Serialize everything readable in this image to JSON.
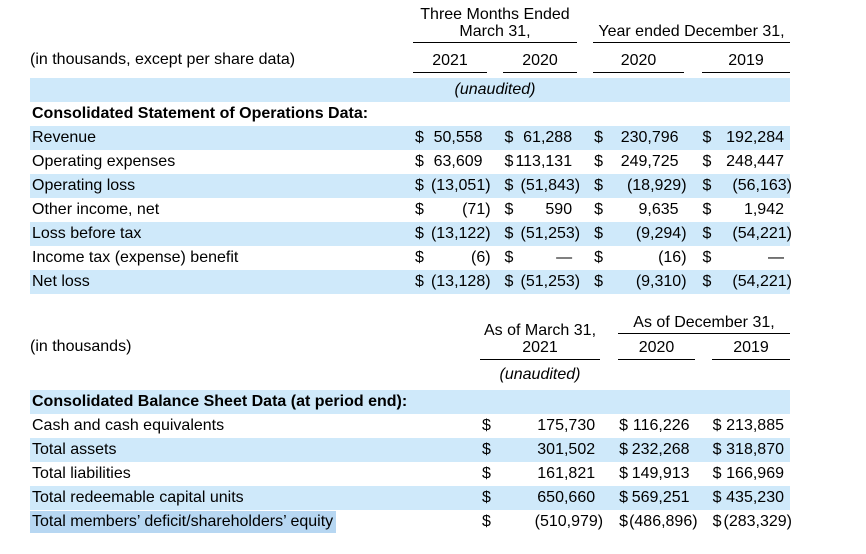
{
  "currency": "$",
  "colors": {
    "stripe": "#cfe9fa",
    "selection": "#b7d7f2",
    "rule": "#000000"
  },
  "operations": {
    "caption": "(in thousands, except per share data)",
    "group1_line1": "Three Months Ended",
    "group1_line2": "March 31,",
    "group2": "Year ended December 31,",
    "years": [
      "2021",
      "2020",
      "2020",
      "2019"
    ],
    "unaudited": "(unaudited)",
    "section_title": "Consolidated Statement of Operations Data:",
    "rows": [
      {
        "label": "Revenue",
        "values": [
          "50,558",
          "61,288",
          "230,796",
          "192,284"
        ]
      },
      {
        "label": "Operating expenses",
        "values": [
          "63,609",
          "113,131",
          "249,725",
          "248,447"
        ]
      },
      {
        "label": "Operating loss",
        "values": [
          "(13,051)",
          "(51,843)",
          "(18,929)",
          "(56,163)"
        ]
      },
      {
        "label": "Other income, net",
        "values": [
          "(71)",
          "590",
          "9,635",
          "1,942"
        ]
      },
      {
        "label": "Loss before tax",
        "values": [
          "(13,122)",
          "(51,253)",
          "(9,294)",
          "(54,221)"
        ]
      },
      {
        "label": "Income tax (expense) benefit",
        "values": [
          "(6)",
          "—",
          "(16)",
          "—"
        ]
      },
      {
        "label": "Net loss",
        "values": [
          "(13,128)",
          "(51,253)",
          "(9,310)",
          "(54,221)"
        ]
      }
    ]
  },
  "balance": {
    "caption": "(in thousands)",
    "col1_line1": "As of March 31,",
    "col1_line2": "2021",
    "group2": "As of December 31,",
    "years": [
      "2020",
      "2019"
    ],
    "unaudited": "(unaudited)",
    "section_title": "Consolidated Balance Sheet Data (at period end):",
    "rows": [
      {
        "label": "Cash and cash equivalents",
        "values": [
          "175,730",
          "116,226",
          "213,885"
        ]
      },
      {
        "label": "Total assets",
        "values": [
          "301,502",
          "232,268",
          "318,870"
        ]
      },
      {
        "label": "Total liabilities",
        "values": [
          "161,821",
          "149,913",
          "166,969"
        ]
      },
      {
        "label": "Total redeemable capital units",
        "values": [
          "650,660",
          "569,251",
          "435,230"
        ]
      },
      {
        "label": "Total members’ deficit/shareholders’ equity",
        "values": [
          "(510,979)",
          "(486,896)",
          "(283,329)"
        ]
      }
    ]
  }
}
